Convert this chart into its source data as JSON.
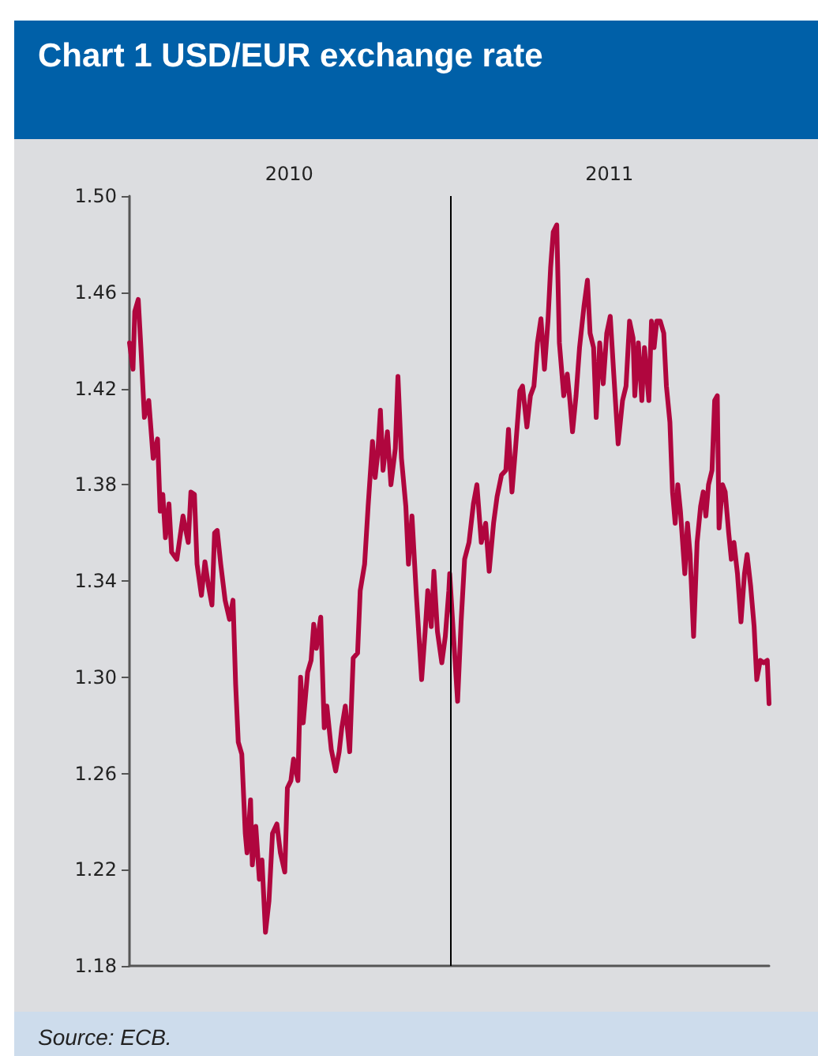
{
  "chart_data": {
    "type": "line",
    "title": "Chart 1 USD/EUR exchange rate",
    "annotations": [
      "Source: ECB."
    ],
    "x": [
      "2010-01-01",
      "2010-01-05",
      "2010-01-07",
      "2010-01-11",
      "2010-01-14",
      "2010-01-18",
      "2010-01-23",
      "2010-01-28",
      "2010-02-02",
      "2010-02-05",
      "2010-02-08",
      "2010-02-11",
      "2010-02-15",
      "2010-02-18",
      "2010-02-24",
      "2010-03-03",
      "2010-03-09",
      "2010-03-12",
      "2010-03-16",
      "2010-03-19",
      "2010-03-24",
      "2010-03-28",
      "2010-04-01",
      "2010-04-05",
      "2010-04-08",
      "2010-04-11",
      "2010-04-15",
      "2010-04-20",
      "2010-04-25",
      "2010-04-29",
      "2010-05-02",
      "2010-05-05",
      "2010-05-09",
      "2010-05-13",
      "2010-05-15",
      "2010-05-19",
      "2010-05-21",
      "2010-05-25",
      "2010-05-29",
      "2010-06-01",
      "2010-06-05",
      "2010-06-09",
      "2010-06-13",
      "2010-06-18",
      "2010-06-22",
      "2010-06-27",
      "2010-06-30",
      "2010-07-04",
      "2010-07-07",
      "2010-07-12",
      "2010-07-15",
      "2010-07-18",
      "2010-07-23",
      "2010-07-27",
      "2010-07-30",
      "2010-08-02",
      "2010-08-07",
      "2010-08-11",
      "2010-08-14",
      "2010-08-19",
      "2010-08-24",
      "2010-08-28",
      "2010-08-31",
      "2010-09-04",
      "2010-09-09",
      "2010-09-13",
      "2010-09-18",
      "2010-09-21",
      "2010-09-26",
      "2010-09-30",
      "2010-10-05",
      "2010-10-08",
      "2010-10-11",
      "2010-10-14",
      "2010-10-17",
      "2010-10-22",
      "2010-10-26",
      "2010-10-31",
      "2010-11-03",
      "2010-11-07",
      "2010-11-12",
      "2010-11-15",
      "2010-11-19",
      "2010-11-24",
      "2010-11-30",
      "2010-12-04",
      "2010-12-07",
      "2010-12-11",
      "2010-12-14",
      "2010-12-18",
      "2010-12-23",
      "2010-12-27",
      "2010-12-31",
      "2011-01-01",
      "2011-01-05",
      "2011-01-10",
      "2011-01-14",
      "2011-01-18",
      "2011-01-23",
      "2011-01-28",
      "2011-02-01",
      "2011-02-06",
      "2011-02-11",
      "2011-02-15",
      "2011-02-20",
      "2011-02-24",
      "2011-03-01",
      "2011-03-06",
      "2011-03-09",
      "2011-03-13",
      "2011-03-17",
      "2011-03-22",
      "2011-03-25",
      "2011-03-30",
      "2011-04-03",
      "2011-04-07",
      "2011-04-11",
      "2011-04-15",
      "2011-04-19",
      "2011-04-23",
      "2011-04-26",
      "2011-04-29",
      "2011-05-03",
      "2011-05-06",
      "2011-05-11",
      "2011-05-15",
      "2011-05-18",
      "2011-05-21",
      "2011-05-25",
      "2011-05-29",
      "2011-06-03",
      "2011-06-07",
      "2011-06-10",
      "2011-06-14",
      "2011-06-17",
      "2011-06-21",
      "2011-06-25",
      "2011-06-29",
      "2011-07-03",
      "2011-07-07",
      "2011-07-12",
      "2011-07-17",
      "2011-07-21",
      "2011-07-25",
      "2011-07-29",
      "2011-07-31",
      "2011-08-04",
      "2011-08-08",
      "2011-08-11",
      "2011-08-16",
      "2011-08-19",
      "2011-08-22",
      "2011-08-25",
      "2011-08-29",
      "2011-09-02",
      "2011-09-05",
      "2011-09-09",
      "2011-09-12",
      "2011-09-15",
      "2011-09-18",
      "2011-09-21",
      "2011-09-26",
      "2011-09-29",
      "2011-10-02",
      "2011-10-06",
      "2011-10-10",
      "2011-10-14",
      "2011-10-17",
      "2011-10-20",
      "2011-10-23",
      "2011-10-27",
      "2011-10-30",
      "2011-11-02",
      "2011-11-04",
      "2011-11-08",
      "2011-11-11",
      "2011-11-15",
      "2011-11-18",
      "2011-11-21",
      "2011-11-25",
      "2011-11-29",
      "2011-12-03",
      "2011-12-06",
      "2011-12-10",
      "2011-12-14",
      "2011-12-17",
      "2011-12-21",
      "2011-12-25",
      "2011-12-29",
      "2011-12-31"
    ],
    "series": [
      {
        "color": "#b0063e",
        "values": [
          1.439,
          1.428,
          1.452,
          1.457,
          1.437,
          1.408,
          1.415,
          1.391,
          1.399,
          1.369,
          1.376,
          1.358,
          1.372,
          1.352,
          1.349,
          1.367,
          1.356,
          1.377,
          1.376,
          1.347,
          1.334,
          1.348,
          1.338,
          1.33,
          1.36,
          1.361,
          1.347,
          1.332,
          1.324,
          1.332,
          1.297,
          1.273,
          1.268,
          1.235,
          1.227,
          1.249,
          1.222,
          1.238,
          1.216,
          1.224,
          1.194,
          1.207,
          1.235,
          1.239,
          1.227,
          1.219,
          1.254,
          1.257,
          1.266,
          1.257,
          1.3,
          1.281,
          1.302,
          1.307,
          1.322,
          1.312,
          1.325,
          1.279,
          1.288,
          1.27,
          1.261,
          1.269,
          1.279,
          1.288,
          1.269,
          1.308,
          1.31,
          1.336,
          1.347,
          1.371,
          1.398,
          1.383,
          1.393,
          1.411,
          1.386,
          1.402,
          1.38,
          1.395,
          1.425,
          1.391,
          1.371,
          1.347,
          1.367,
          1.334,
          1.299,
          1.319,
          1.336,
          1.321,
          1.344,
          1.319,
          1.306,
          1.317,
          1.336,
          1.343,
          1.319,
          1.29,
          1.323,
          1.349,
          1.356,
          1.372,
          1.38,
          1.356,
          1.364,
          1.344,
          1.364,
          1.375,
          1.384,
          1.386,
          1.403,
          1.377,
          1.395,
          1.419,
          1.421,
          1.404,
          1.417,
          1.421,
          1.439,
          1.449,
          1.428,
          1.448,
          1.47,
          1.485,
          1.488,
          1.439,
          1.417,
          1.426,
          1.415,
          1.402,
          1.417,
          1.437,
          1.454,
          1.465,
          1.443,
          1.437,
          1.408,
          1.439,
          1.422,
          1.443,
          1.45,
          1.426,
          1.397,
          1.415,
          1.421,
          1.448,
          1.441,
          1.417,
          1.439,
          1.415,
          1.437,
          1.415,
          1.448,
          1.437,
          1.448,
          1.448,
          1.443,
          1.421,
          1.406,
          1.377,
          1.364,
          1.38,
          1.369,
          1.343,
          1.364,
          1.351,
          1.317,
          1.356,
          1.371,
          1.377,
          1.367,
          1.38,
          1.386,
          1.415,
          1.417,
          1.362,
          1.38,
          1.377,
          1.36,
          1.349,
          1.356,
          1.343,
          1.323,
          1.343,
          1.351,
          1.338,
          1.321,
          1.299,
          1.307,
          1.306,
          1.307,
          1.289
        ]
      }
    ],
    "xlim": [
      "2010-01-01",
      "2011-12-31"
    ],
    "xticks": [
      {
        "value": "2010-07-02",
        "label": "2010"
      },
      {
        "value": "2011-07-02",
        "label": "2011"
      }
    ],
    "ylim": [
      1.18,
      1.5
    ],
    "yticks": [
      1.18,
      1.22,
      1.26,
      {
        "value": 1.3,
        "label": "1.30"
      },
      1.34,
      1.38,
      1.42,
      1.46,
      {
        "value": 1.5,
        "label": "1.50"
      }
    ],
    "ref_lines": [
      {
        "axis": "x",
        "value": "2011-01-01",
        "color": "#000000",
        "line_style": "solid"
      }
    ],
    "marker": "none",
    "line_style": "solid"
  }
}
